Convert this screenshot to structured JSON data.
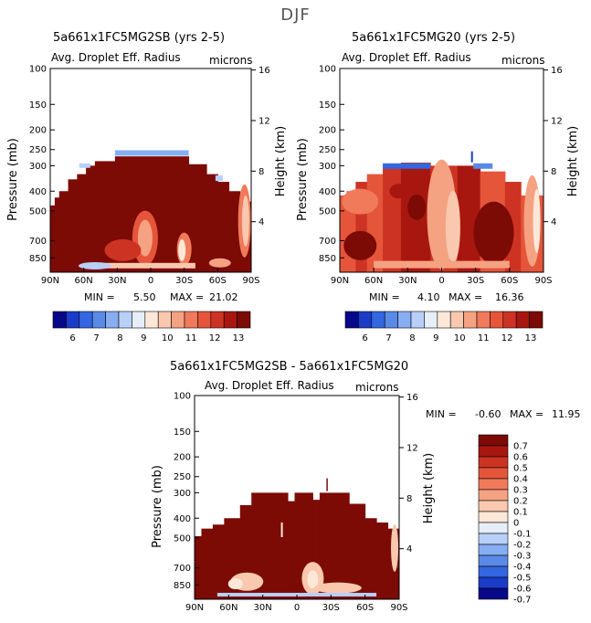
{
  "figure": {
    "season": "DJF",
    "colors": {
      "bg": "#ffffff",
      "axis": "#000000",
      "title": "#555555"
    }
  },
  "chart_data": [
    {
      "type": "heatmap",
      "title": "5a661x1FC5MG2SB (yrs 2-5)",
      "subtitle": "Avg. Droplet Eff. Radius",
      "units": "microns",
      "xlabel": "",
      "ylabel_left": "Pressure (mb)",
      "ylabel_right": "Height (km)",
      "x_ticks": [
        "90N",
        "60N",
        "30N",
        "0",
        "30S",
        "60S",
        "90S"
      ],
      "y_ticks_left": [
        "100",
        "150",
        "200",
        "250",
        "300",
        "400",
        "500",
        "700",
        "850"
      ],
      "y_ticks_right": [
        "16",
        "12",
        "8",
        "4"
      ],
      "min_label": "MIN =",
      "min_value": "5.50",
      "max_label": "MAX =",
      "max_value": "21.02",
      "colorbar": {
        "orientation": "horizontal",
        "labels": [
          "6",
          "7",
          "8",
          "9",
          "10",
          "11",
          "12",
          "13"
        ]
      }
    },
    {
      "type": "heatmap",
      "title": "5a661x1FC5MG20 (yrs 2-5)",
      "subtitle": "Avg. Droplet Eff. Radius",
      "units": "microns",
      "xlabel": "",
      "ylabel_left": "Pressure (mb)",
      "ylabel_right": "Height (km)",
      "x_ticks": [
        "90N",
        "60N",
        "30N",
        "0",
        "30S",
        "60S",
        "90S"
      ],
      "y_ticks_left": [
        "100",
        "150",
        "200",
        "250",
        "300",
        "400",
        "500",
        "700",
        "850"
      ],
      "y_ticks_right": [
        "16",
        "12",
        "8",
        "4"
      ],
      "min_label": "MIN =",
      "min_value": "4.10",
      "max_label": "MAX =",
      "max_value": "16.36",
      "colorbar": {
        "orientation": "horizontal",
        "labels": [
          "6",
          "7",
          "8",
          "9",
          "10",
          "11",
          "12",
          "13"
        ]
      }
    },
    {
      "type": "heatmap",
      "title": "5a661x1FC5MG2SB - 5a661x1FC5MG20",
      "subtitle": "Avg. Droplet Eff. Radius",
      "units": "microns",
      "xlabel": "",
      "ylabel_left": "Pressure (mb)",
      "ylabel_right": "Height (km)",
      "x_ticks": [
        "90N",
        "60N",
        "30N",
        "0",
        "30S",
        "60S",
        "90S"
      ],
      "y_ticks_left": [
        "100",
        "150",
        "200",
        "250",
        "300",
        "400",
        "500",
        "700",
        "850"
      ],
      "y_ticks_right": [
        "16",
        "12",
        "8",
        "4"
      ],
      "min_label": "MIN =",
      "min_value": "-0.60",
      "max_label": "MAX =",
      "max_value": "11.95",
      "colorbar": {
        "orientation": "vertical",
        "labels": [
          "0.7",
          "0.6",
          "0.5",
          "0.4",
          "0.3",
          "0.2",
          "0.1",
          "0",
          "-0.1",
          "-0.2",
          "-0.3",
          "-0.4",
          "-0.5",
          "-0.6",
          "-0.7"
        ]
      }
    }
  ],
  "palette": {
    "absolute": [
      "#08088a",
      "#1a3cc8",
      "#3366e0",
      "#5a8ae8",
      "#87aef2",
      "#b8d0f8",
      "#e6eefa",
      "#fde8d8",
      "#f9c8ae",
      "#f5a282",
      "#f07a5a",
      "#e5553a",
      "#cc3322",
      "#a8170f",
      "#7c0a05"
    ],
    "difference": [
      "#7c0a05",
      "#a8170f",
      "#cc3322",
      "#e5553a",
      "#f07a5a",
      "#f5a282",
      "#f9c8ae",
      "#fde8d8",
      "#e6eefa",
      "#b8d0f8",
      "#87aef2",
      "#5a8ae8",
      "#3366e0",
      "#1a3cc8",
      "#08088a"
    ]
  }
}
